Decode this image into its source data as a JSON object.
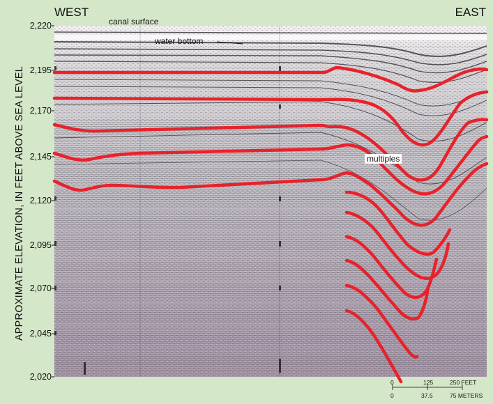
{
  "header": {
    "west": "WEST",
    "east": "EAST"
  },
  "annotations": {
    "canal_surface": "canal surface",
    "water_bottom": "water bottom",
    "multiples": "multiples"
  },
  "y_axis": {
    "label": "APPROXIMATE ELEVATION, IN FEET ABOVE SEA LEVEL",
    "ticks": [
      "2,220",
      "2,195",
      "2,170",
      "2,145",
      "2,120",
      "2,095",
      "2,070",
      "2,045",
      "2,020"
    ]
  },
  "scale_bar": {
    "feet": [
      "0",
      "125",
      "250 FEET"
    ],
    "meters": [
      "0",
      "37.5",
      "75 METERS"
    ]
  },
  "colors": {
    "horizon": "#e8222a",
    "background": "#d4e7c8"
  }
}
